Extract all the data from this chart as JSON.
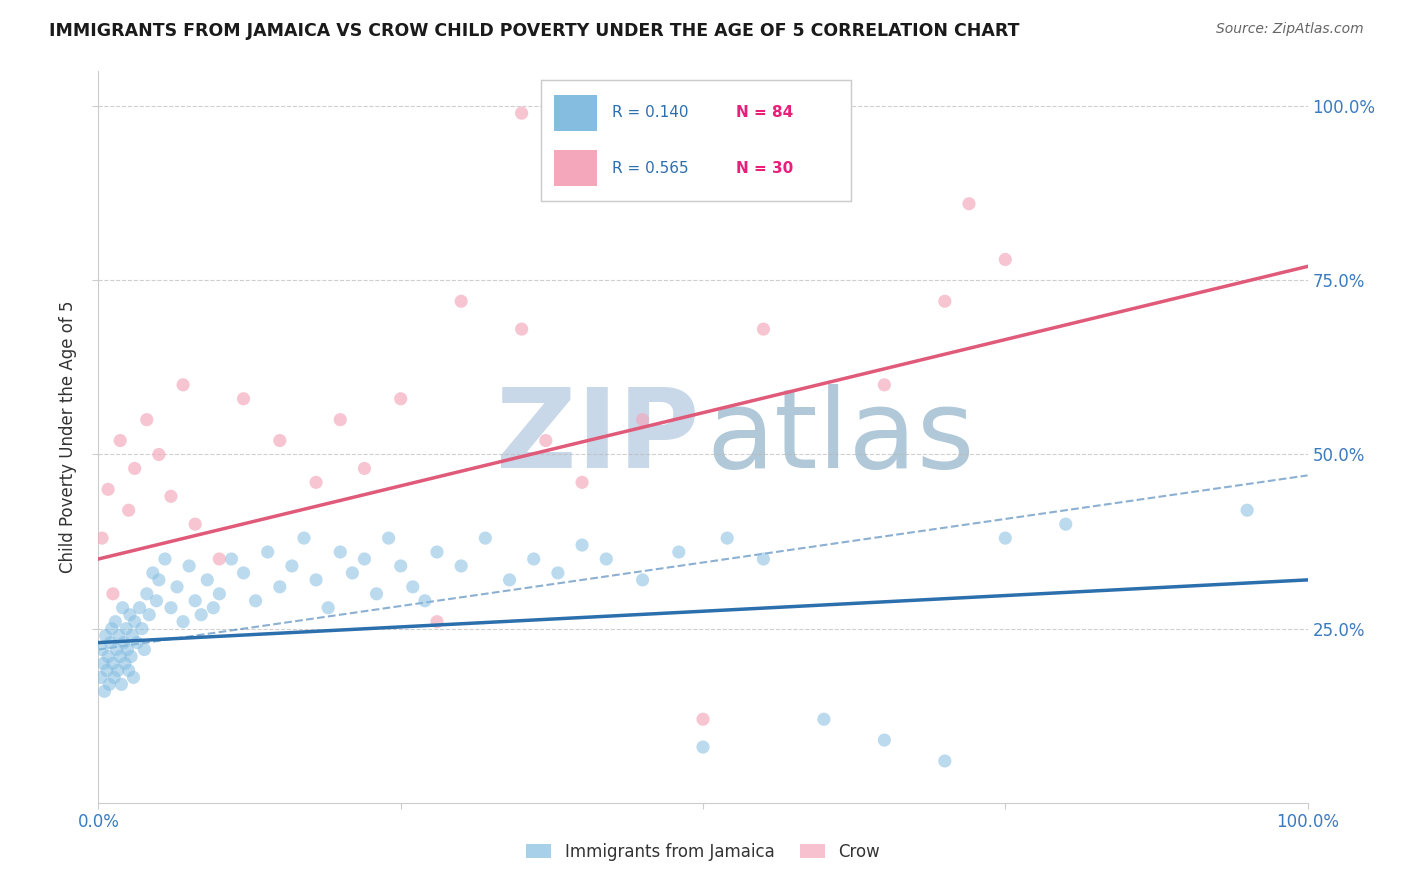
{
  "title": "IMMIGRANTS FROM JAMAICA VS CROW CHILD POVERTY UNDER THE AGE OF 5 CORRELATION CHART",
  "source": "Source: ZipAtlas.com",
  "ylabel": "Child Poverty Under the Age of 5",
  "legend_labels": [
    "Immigrants from Jamaica",
    "Crow"
  ],
  "blue_color": "#85bde0",
  "pink_color": "#f4a7bb",
  "blue_line_color": "#2c6fad",
  "pink_line_color": "#e05a7a",
  "title_color": "#1a1a1a",
  "source_color": "#666666",
  "legend_r_color": "#2c6fad",
  "legend_n_color": "#e8207a",
  "watermark_zip_color": "#c8d8e8",
  "watermark_atlas_color": "#b0c8d8",
  "xlim": [
    0,
    100
  ],
  "ylim": [
    0,
    105
  ],
  "figsize": [
    14.06,
    8.92
  ],
  "blue_x": [
    0.2,
    0.3,
    0.4,
    0.5,
    0.6,
    0.7,
    0.8,
    0.9,
    1.0,
    1.1,
    1.2,
    1.3,
    1.4,
    1.5,
    1.6,
    1.7,
    1.8,
    1.9,
    2.0,
    2.1,
    2.2,
    2.3,
    2.4,
    2.5,
    2.6,
    2.7,
    2.8,
    2.9,
    3.0,
    3.2,
    3.4,
    3.6,
    3.8,
    4.0,
    4.2,
    4.5,
    4.8,
    5.0,
    5.5,
    6.0,
    6.5,
    7.0,
    7.5,
    8.0,
    8.5,
    9.0,
    9.5,
    10.0,
    11.0,
    12.0,
    13.0,
    14.0,
    15.0,
    16.0,
    17.0,
    18.0,
    19.0,
    20.0,
    21.0,
    22.0,
    23.0,
    24.0,
    25.0,
    26.0,
    27.0,
    28.0,
    30.0,
    32.0,
    34.0,
    36.0,
    38.0,
    40.0,
    42.0,
    45.0,
    48.0,
    50.0,
    52.0,
    55.0,
    60.0,
    65.0,
    70.0,
    75.0,
    80.0,
    95.0
  ],
  "blue_y": [
    18.0,
    22.0,
    20.0,
    16.0,
    24.0,
    19.0,
    21.0,
    17.0,
    23.0,
    25.0,
    20.0,
    18.0,
    26.0,
    22.0,
    19.0,
    24.0,
    21.0,
    17.0,
    28.0,
    23.0,
    20.0,
    25.0,
    22.0,
    19.0,
    27.0,
    21.0,
    24.0,
    18.0,
    26.0,
    23.0,
    28.0,
    25.0,
    22.0,
    30.0,
    27.0,
    33.0,
    29.0,
    32.0,
    35.0,
    28.0,
    31.0,
    26.0,
    34.0,
    29.0,
    27.0,
    32.0,
    28.0,
    30.0,
    35.0,
    33.0,
    29.0,
    36.0,
    31.0,
    34.0,
    38.0,
    32.0,
    28.0,
    36.0,
    33.0,
    35.0,
    30.0,
    38.0,
    34.0,
    31.0,
    29.0,
    36.0,
    34.0,
    38.0,
    32.0,
    35.0,
    33.0,
    37.0,
    35.0,
    32.0,
    36.0,
    8.0,
    38.0,
    35.0,
    12.0,
    9.0,
    6.0,
    38.0,
    40.0,
    42.0
  ],
  "pink_x": [
    0.3,
    0.8,
    1.2,
    1.8,
    2.5,
    3.0,
    4.0,
    5.0,
    6.0,
    7.0,
    8.0,
    10.0,
    12.0,
    15.0,
    18.0,
    20.0,
    22.0,
    25.0,
    28.0,
    30.0,
    35.0,
    37.0,
    40.0,
    45.0,
    50.0,
    55.0,
    65.0,
    70.0,
    72.0,
    75.0
  ],
  "pink_y": [
    38.0,
    45.0,
    30.0,
    52.0,
    42.0,
    48.0,
    55.0,
    50.0,
    44.0,
    60.0,
    40.0,
    35.0,
    58.0,
    52.0,
    46.0,
    55.0,
    48.0,
    58.0,
    26.0,
    72.0,
    68.0,
    52.0,
    46.0,
    55.0,
    12.0,
    68.0,
    60.0,
    72.0,
    86.0,
    78.0
  ],
  "pink_outlier_x": [
    35.0
  ],
  "pink_outlier_y": [
    99.0
  ],
  "blue_line_x0": 0,
  "blue_line_x1": 100,
  "blue_line_y0": 23.0,
  "blue_line_y1": 32.0,
  "blue_dash_y0": 22.0,
  "blue_dash_y1": 47.0,
  "pink_line_x0": 0,
  "pink_line_x1": 100,
  "pink_line_y0": 35.0,
  "pink_line_y1": 77.0
}
